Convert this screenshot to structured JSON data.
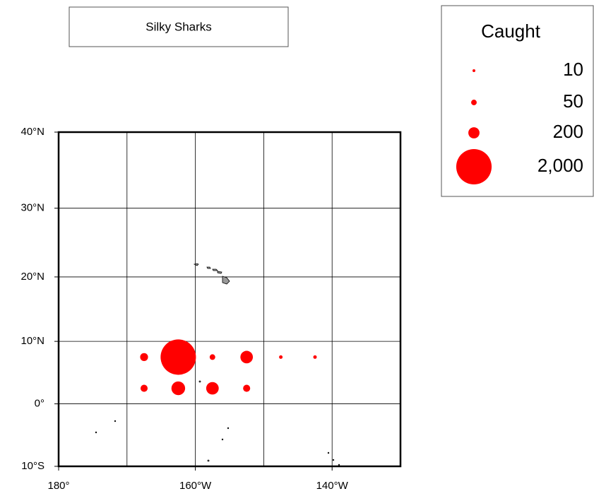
{
  "chart_data": {
    "type": "bubble",
    "title": "Silky Sharks",
    "projection": "mercator",
    "color": "#ff0000",
    "legend": {
      "title": "Caught",
      "sizes": [
        10,
        50,
        200,
        2000
      ],
      "size_labels": [
        "10",
        "50",
        "200",
        "2,000"
      ]
    },
    "xlim": [
      -180,
      -130
    ],
    "xticks": [
      {
        "value": -180,
        "label": "180°"
      },
      {
        "value": -170,
        "label": null
      },
      {
        "value": -160,
        "label": "160°W"
      },
      {
        "value": -150,
        "label": null
      },
      {
        "value": -140,
        "label": "140°W"
      }
    ],
    "ylim": [
      -10,
      40
    ],
    "yticks": [
      {
        "value": -10,
        "label": "10°S"
      },
      {
        "value": 0,
        "label": "0°"
      },
      {
        "value": 10,
        "label": "10°N"
      },
      {
        "value": 20,
        "label": "20°N"
      },
      {
        "value": 30,
        "label": "30°N"
      },
      {
        "value": 40,
        "label": "40°N"
      }
    ],
    "grid": true,
    "x": [
      -167.5,
      -162.5,
      -157.5,
      -152.5,
      -147.5,
      -142.5,
      -167.5,
      -162.5,
      -157.5,
      -152.5
    ],
    "y": [
      7.5,
      7.5,
      7.5,
      7.5,
      7.5,
      7.5,
      2.5,
      2.5,
      2.5,
      2.5
    ],
    "sizes": [
      100,
      2000,
      50,
      250,
      20,
      20,
      80,
      300,
      250,
      80
    ]
  }
}
